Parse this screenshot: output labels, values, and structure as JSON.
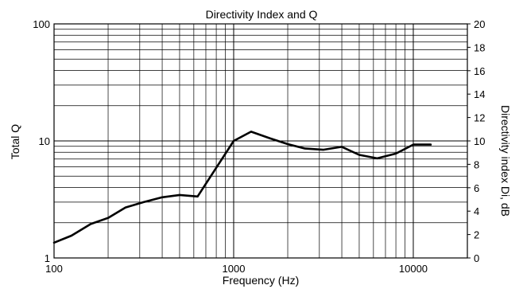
{
  "chart_data": {
    "type": "line",
    "title": "Directivity Index and Q",
    "xlabel": "Frequency (Hz)",
    "ylabel": "Total Q",
    "y2label": "Directivity index Di, dB",
    "xscale": "log",
    "yscale": "log",
    "xlim": [
      100,
      20000
    ],
    "ylim": [
      1,
      100
    ],
    "y2lim": [
      0,
      20
    ],
    "grid": true,
    "x_tick_labels": [
      "100",
      "1000",
      "10000"
    ],
    "y_tick_labels": [
      "1",
      "10",
      "100"
    ],
    "y2_tick_labels": [
      "0",
      "2",
      "4",
      "6",
      "8",
      "10",
      "12",
      "14",
      "16",
      "18",
      "20"
    ],
    "series": [
      {
        "name": "",
        "axis": "y",
        "x": [
          100,
          125,
          160,
          200,
          250,
          315,
          400,
          500,
          630,
          800,
          1000,
          1250,
          1600,
          2000,
          2500,
          3150,
          4000,
          5000,
          6300,
          8000,
          10000,
          12500
        ],
        "y": [
          1.35,
          1.55,
          1.95,
          2.2,
          2.7,
          3.0,
          3.3,
          3.45,
          3.35,
          5.9,
          10.0,
          12.0,
          10.5,
          9.4,
          8.6,
          8.4,
          8.9,
          7.6,
          7.1,
          7.8,
          9.3,
          9.3
        ]
      }
    ]
  }
}
